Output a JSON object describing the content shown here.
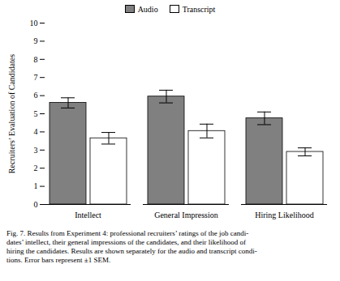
{
  "chart_data": {
    "type": "bar",
    "categories": [
      "Intellect",
      "General Impression",
      "Hiring Likelihood"
    ],
    "series": [
      {
        "name": "Audio",
        "color": "#808080",
        "values": [
          5.6,
          5.95,
          4.75
        ],
        "errors": [
          0.28,
          0.35,
          0.35
        ]
      },
      {
        "name": "Transcript",
        "color": "#ffffff",
        "values": [
          3.65,
          4.05,
          2.9
        ],
        "errors": [
          0.32,
          0.38,
          0.22
        ]
      }
    ],
    "ylabel": "Recruiters’ Evaluation of Candidates",
    "ylim": [
      0,
      10
    ],
    "yticks": [
      0,
      1,
      2,
      3,
      4,
      5,
      6,
      7,
      8,
      9,
      10
    ],
    "grid": false,
    "caption": [
      "Fig. 7.  Results from Experiment 4: professional recruiters’ ratings of the job candi-",
      "dates’ intellect, their general impressions of the candidates, and their likelihood of",
      "hiring the candidates. Results are shown separately for the audio and transcript condi-",
      "tions. Error bars represent ±1 SEM."
    ]
  }
}
